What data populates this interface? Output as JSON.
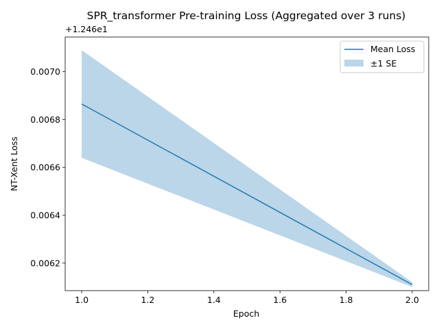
{
  "chart_data": {
    "type": "line",
    "title": "SPR_transformer Pre-training Loss (Aggregated over 3 runs)",
    "xlabel": "Epoch",
    "ylabel": "NT-Xent Loss",
    "offset_text": "+1.246e1",
    "x": [
      1.0,
      2.0
    ],
    "series": [
      {
        "name": "Mean Loss",
        "values": [
          0.006865,
          0.00611
        ],
        "color": "#1f77b4"
      }
    ],
    "band": {
      "name": "±1 SE",
      "lower": [
        0.00664,
        0.0061
      ],
      "upper": [
        0.00709,
        0.00612
      ],
      "color": "#1f77b4",
      "alpha": 0.3
    },
    "xlim": [
      0.95,
      2.05
    ],
    "ylim": [
      0.006085,
      0.007145
    ],
    "xticks": [
      1.0,
      1.2,
      1.4,
      1.6,
      1.8,
      2.0
    ],
    "xtick_labels": [
      "1.0",
      "1.2",
      "1.4",
      "1.6",
      "1.8",
      "2.0"
    ],
    "yticks": [
      0.0062,
      0.0064,
      0.0066,
      0.0068,
      0.007
    ],
    "ytick_labels": [
      "0.0062",
      "0.0064",
      "0.0066",
      "0.0068",
      "0.0070"
    ],
    "grid": false,
    "legend_position": "top-right"
  }
}
